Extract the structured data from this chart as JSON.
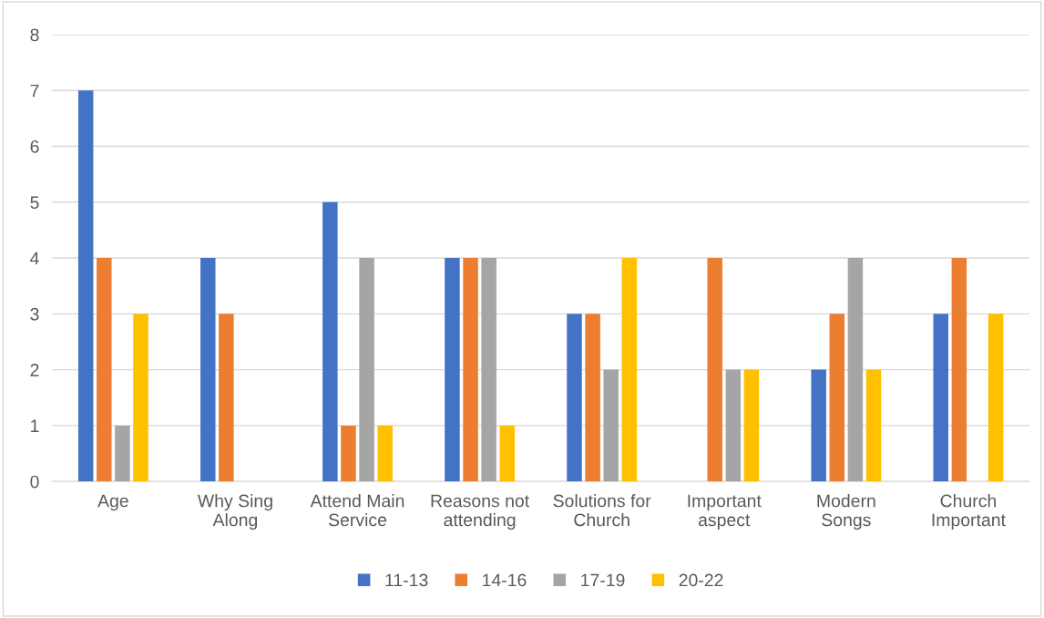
{
  "chart_data": {
    "type": "bar",
    "categories": [
      "Age",
      "Why Sing Along",
      "Attend Main Service",
      "Reasons not attending",
      "Solutions for Church",
      "Important aspect",
      "Modern Songs",
      "Church Important"
    ],
    "series": [
      {
        "name": "11-13",
        "color": "#4472c4",
        "values": [
          7,
          4,
          5,
          4,
          3,
          null,
          2,
          3
        ]
      },
      {
        "name": "14-16",
        "color": "#ed7d31",
        "values": [
          4,
          3,
          1,
          4,
          3,
          4,
          3,
          4
        ]
      },
      {
        "name": "17-19",
        "color": "#a5a5a5",
        "values": [
          1,
          null,
          4,
          4,
          2,
          2,
          4,
          null
        ]
      },
      {
        "name": "20-22",
        "color": "#ffc000",
        "values": [
          3,
          null,
          1,
          1,
          4,
          2,
          2,
          3
        ]
      }
    ],
    "ylim": [
      0,
      8
    ],
    "yticks": [
      0,
      1,
      2,
      3,
      4,
      5,
      6,
      7,
      8
    ],
    "grid": "y",
    "legend": "bottom"
  }
}
